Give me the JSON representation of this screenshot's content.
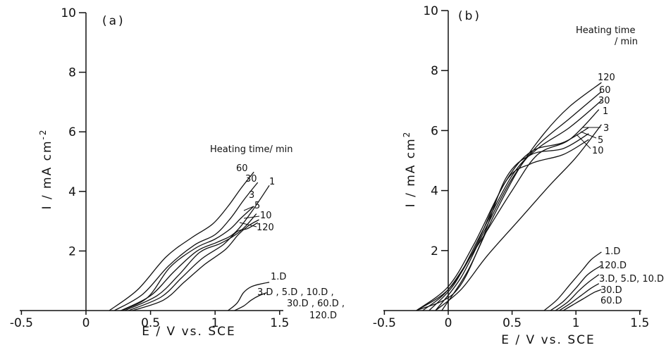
{
  "chart_data": [
    {
      "type": "line",
      "panel_label": "(a)",
      "xlabel": "E / V vs. SCE",
      "ylabel": "I / mA cm",
      "ylabel_exp": "-2",
      "xlim": [
        -0.5,
        1.5
      ],
      "ylim": [
        0,
        10
      ],
      "xticks": [
        -0.5,
        0,
        0.5,
        1,
        1.5
      ],
      "xtick_labels": [
        "-0.5",
        "0",
        "0.5",
        "1",
        "1.5"
      ],
      "yticks": [
        2,
        4,
        6,
        8,
        10
      ],
      "ytick_labels": [
        "2",
        "4",
        "6",
        "8",
        "10"
      ],
      "legend_title": "Heating time/ min",
      "series": [
        {
          "name": "60",
          "x": [
            0.18,
            0.4,
            0.62,
            0.82,
            0.98,
            1.1,
            1.2,
            1.3
          ],
          "y": [
            0,
            0.7,
            1.8,
            2.45,
            2.9,
            3.5,
            4.1,
            4.65
          ]
        },
        {
          "name": "30",
          "x": [
            0.22,
            0.44,
            0.64,
            0.84,
            1.0,
            1.12,
            1.22,
            1.33
          ],
          "y": [
            0,
            0.55,
            1.5,
            2.2,
            2.55,
            3.1,
            3.7,
            4.3
          ]
        },
        {
          "name": "1",
          "x": [
            0.27,
            0.5,
            0.68,
            0.86,
            1.02,
            1.15,
            1.28,
            1.42
          ],
          "y": [
            0,
            0.5,
            1.3,
            2.0,
            2.3,
            2.6,
            3.3,
            4.2
          ]
        },
        {
          "name": "3",
          "x": [
            0.28,
            0.48,
            0.65,
            0.85,
            1.0,
            1.12,
            1.2,
            1.3
          ],
          "y": [
            0,
            0.45,
            1.45,
            2.1,
            2.4,
            2.75,
            3.1,
            3.5
          ]
        },
        {
          "name": "5",
          "x": [
            0.3,
            0.55,
            0.72,
            0.88,
            1.04,
            1.16,
            1.24,
            1.32
          ],
          "y": [
            0,
            0.5,
            1.2,
            1.95,
            2.25,
            2.55,
            2.85,
            3.25
          ]
        },
        {
          "name": "10",
          "x": [
            0.33,
            0.58,
            0.74,
            0.9,
            1.06,
            1.17,
            1.25,
            1.33
          ],
          "y": [
            0,
            0.45,
            1.1,
            1.75,
            2.2,
            2.65,
            2.75,
            2.95
          ]
        },
        {
          "name": "120",
          "x": [
            0.36,
            0.6,
            0.76,
            0.92,
            1.08,
            1.18,
            1.26,
            1.34
          ],
          "y": [
            0,
            0.35,
            0.95,
            1.55,
            2.05,
            2.55,
            2.85,
            3.05
          ]
        },
        {
          "name": "1.D",
          "x": [
            1.1,
            1.17,
            1.22,
            1.28,
            1.36,
            1.42
          ],
          "y": [
            0,
            0.25,
            0.6,
            0.8,
            0.9,
            0.95
          ]
        },
        {
          "name": "3.D , 5.D , 10.D , 30.D , 60.D , 120.D",
          "x": [
            1.15,
            1.22,
            1.28,
            1.34,
            1.4
          ],
          "y": [
            0,
            0.15,
            0.35,
            0.5,
            0.6
          ]
        }
      ],
      "annotations": [
        {
          "text": "60",
          "series": "60"
        },
        {
          "text": "30",
          "series": "30"
        },
        {
          "text": "1",
          "series": "1"
        },
        {
          "text": "3",
          "series": "3"
        },
        {
          "text": "5",
          "series": "5"
        },
        {
          "text": "10",
          "series": "10"
        },
        {
          "text": "120",
          "series": "120"
        },
        {
          "text": "1.D",
          "series": "1.D"
        },
        {
          "text": "3.D , 5.D , 10.D ,",
          "series": "3.D , 5.D , 10.D , 30.D , 60.D , 120.D"
        },
        {
          "text": "30.D , 60.D ,"
        },
        {
          "text": "120.D"
        }
      ]
    },
    {
      "type": "line",
      "panel_label": "(b)",
      "xlabel": "E / V vs. SCE",
      "ylabel": "I / mA cm",
      "ylabel_exp": "2",
      "xlim": [
        -0.5,
        1.5
      ],
      "ylim": [
        0,
        10
      ],
      "xticks": [
        -0.5,
        0,
        0.5,
        1,
        1.5
      ],
      "xtick_labels": [
        "-0.5",
        "0",
        "0.5",
        "1",
        "1.5"
      ],
      "yticks": [
        2,
        4,
        6,
        8,
        10
      ],
      "ytick_labels": [
        "2",
        "4",
        "6",
        "8",
        "10"
      ],
      "legend_title": "Heating time",
      "legend_unit": "/ min",
      "series": [
        {
          "name": "120",
          "x": [
            -0.05,
            0.15,
            0.35,
            0.55,
            0.75,
            0.95,
            1.2
          ],
          "y": [
            0,
            1.3,
            3.1,
            4.7,
            5.9,
            6.8,
            7.6
          ]
        },
        {
          "name": "60",
          "x": [
            -0.1,
            0.1,
            0.3,
            0.5,
            0.7,
            0.95,
            1.2
          ],
          "y": [
            0,
            1.1,
            2.8,
            4.4,
            5.5,
            6.4,
            7.3
          ]
        },
        {
          "name": "30",
          "x": [
            -0.15,
            0.05,
            0.25,
            0.5,
            0.7,
            0.95,
            1.2
          ],
          "y": [
            0,
            0.9,
            2.5,
            4.5,
            5.4,
            6.1,
            7.0
          ]
        },
        {
          "name": "1",
          "x": [
            -0.2,
            0.0,
            0.25,
            0.5,
            0.7,
            0.95,
            1.18
          ],
          "y": [
            0,
            0.7,
            2.3,
            4.0,
            5.2,
            5.7,
            6.7
          ]
        },
        {
          "name": "3",
          "x": [
            -0.25,
            0.0,
            0.2,
            0.45,
            0.65,
            0.9,
            1.1
          ],
          "y": [
            0,
            0.8,
            2.2,
            4.3,
            5.3,
            5.6,
            6.1
          ]
        },
        {
          "name": "5",
          "x": [
            -0.25,
            0.05,
            0.25,
            0.45,
            0.65,
            0.9,
            1.1
          ],
          "y": [
            0,
            0.6,
            2.2,
            4.4,
            5.2,
            5.4,
            5.9
          ]
        },
        {
          "name": "10",
          "x": [
            -0.25,
            0.0,
            0.2,
            0.45,
            0.65,
            0.9,
            1.1
          ],
          "y": [
            0,
            0.7,
            2.0,
            4.3,
            4.9,
            5.2,
            5.7
          ]
        },
        {
          "name": "",
          "x": [
            -0.1,
            0.1,
            0.3,
            0.55,
            0.8,
            1.0,
            1.2
          ],
          "y": [
            0,
            0.7,
            1.8,
            3.0,
            4.2,
            5.1,
            6.2
          ]
        },
        {
          "name": "1.D",
          "x": [
            0.75,
            0.85,
            0.95,
            1.05,
            1.12,
            1.2
          ],
          "y": [
            0,
            0.35,
            0.85,
            1.35,
            1.7,
            1.95
          ]
        },
        {
          "name": "120.D",
          "x": [
            0.8,
            0.9,
            1.0,
            1.08,
            1.14,
            1.2
          ],
          "y": [
            0,
            0.3,
            0.75,
            1.15,
            1.35,
            1.5
          ]
        },
        {
          "name": "3.D, 5.D, 10.D",
          "x": [
            0.84,
            0.94,
            1.02,
            1.1,
            1.18
          ],
          "y": [
            0,
            0.3,
            0.65,
            0.95,
            1.2
          ]
        },
        {
          "name": "30.D",
          "x": [
            0.87,
            0.96,
            1.04,
            1.12,
            1.18
          ],
          "y": [
            0,
            0.25,
            0.5,
            0.75,
            0.9
          ]
        },
        {
          "name": "60.D",
          "x": [
            0.9,
            0.98,
            1.06,
            1.14,
            1.2
          ],
          "y": [
            0,
            0.2,
            0.4,
            0.6,
            0.7
          ]
        }
      ],
      "annotations": [
        {
          "text": "120",
          "series": "120"
        },
        {
          "text": "60",
          "series": "60"
        },
        {
          "text": "30",
          "series": "30"
        },
        {
          "text": "1",
          "series": "1"
        },
        {
          "text": "3",
          "series": "3"
        },
        {
          "text": "5",
          "series": "5"
        },
        {
          "text": "10",
          "series": "10"
        },
        {
          "text": "1.D",
          "series": "1.D"
        },
        {
          "text": "120.D",
          "series": "120.D"
        },
        {
          "text": "3.D, 5.D, 10.D",
          "series": "3.D, 5.D, 10.D"
        },
        {
          "text": "30.D",
          "series": "30.D"
        },
        {
          "text": "60.D",
          "series": "60.D"
        }
      ]
    }
  ]
}
